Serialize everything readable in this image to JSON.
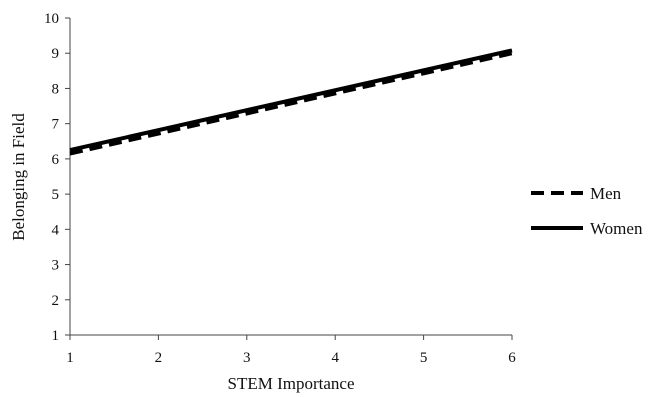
{
  "chart_data": {
    "type": "line",
    "title": "",
    "xlabel": "STEM Importance",
    "ylabel": "Belonging in Field",
    "xlim": [
      1,
      6
    ],
    "ylim": [
      1,
      10
    ],
    "x_ticks": [
      1,
      2,
      3,
      4,
      5,
      6
    ],
    "y_ticks": [
      1,
      2,
      3,
      4,
      5,
      6,
      7,
      8,
      9,
      10
    ],
    "grid": false,
    "legend_position": "right",
    "series": [
      {
        "name": "Men",
        "style": "dashed",
        "color": "#000000",
        "x": [
          1,
          6
        ],
        "y": [
          6.15,
          9.0
        ]
      },
      {
        "name": "Women",
        "style": "solid",
        "color": "#000000",
        "x": [
          1,
          6
        ],
        "y": [
          6.25,
          9.08
        ]
      }
    ]
  }
}
